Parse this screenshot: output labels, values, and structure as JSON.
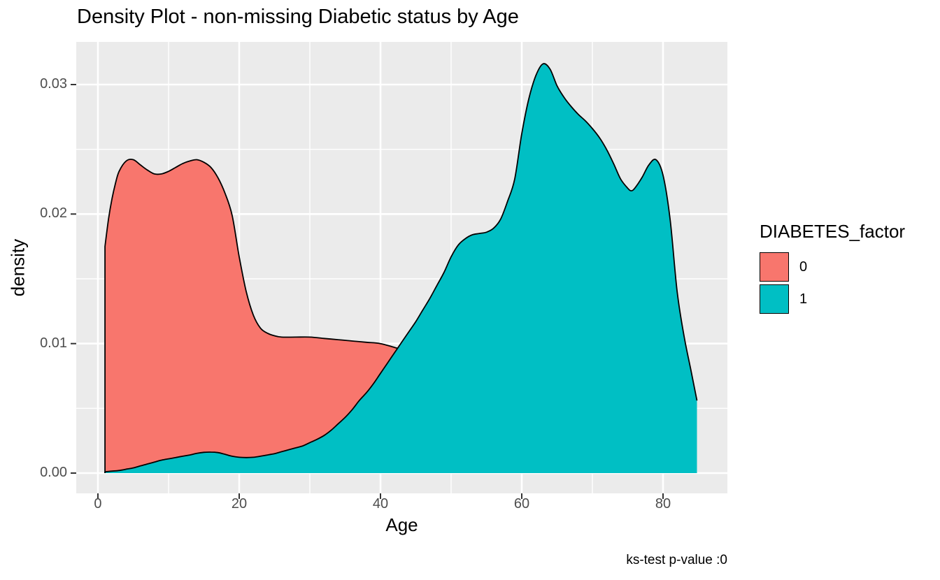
{
  "title": "Density Plot - non-missing Diabetic status by Age",
  "caption": "ks-test p-value :0",
  "axes": {
    "x": {
      "label": "Age",
      "tick_values": [
        0,
        20,
        40,
        60,
        80
      ],
      "tick_labels": [
        "0",
        "20",
        "40",
        "60",
        "80"
      ],
      "minor_ticks": [
        10,
        30,
        50,
        70
      ],
      "limits": [
        -3.069,
        89.109
      ]
    },
    "y": {
      "label": "density",
      "tick_values": [
        0,
        0.01,
        0.02,
        0.03
      ],
      "tick_labels": [
        "0.00",
        "0.01",
        "0.02",
        "0.03"
      ],
      "minor_ticks": [
        0.005,
        0.015,
        0.025
      ],
      "limits": [
        -0.001565,
        0.033292
      ]
    }
  },
  "legend": {
    "title": "DIABETES_factor",
    "position": "right",
    "items": [
      {
        "label": "0",
        "color": "#F8766D"
      },
      {
        "label": "1",
        "color": "#00BFC4"
      }
    ]
  },
  "colors": {
    "panel_background": "#EBEBEB",
    "gridline": "#FFFFFF",
    "curve_outline": "#000000",
    "tick_mark": "#333333",
    "tick_label": "#4d4d4d",
    "series_0": "#F8766D",
    "series_1": "#00BFC4"
  },
  "chart_data": {
    "type": "area",
    "title": "Density Plot - non-missing Diabetic status by Age",
    "xlabel": "Age",
    "ylabel": "density",
    "xlim": [
      -3.069,
      89.109
    ],
    "ylim": [
      -0.001565,
      0.033292
    ],
    "grid": true,
    "legend_position": "right",
    "series": [
      {
        "name": "0",
        "color": "#F8766D",
        "points": [
          [
            1,
            0.0175
          ],
          [
            1.5,
            0.0196
          ],
          [
            2,
            0.0212
          ],
          [
            2.5,
            0.0224
          ],
          [
            3,
            0.0233
          ],
          [
            4,
            0.0241
          ],
          [
            5,
            0.0242
          ],
          [
            6,
            0.0238
          ],
          [
            7,
            0.0234
          ],
          [
            8,
            0.0231
          ],
          [
            9,
            0.0231
          ],
          [
            10,
            0.0233
          ],
          [
            11,
            0.0236
          ],
          [
            12,
            0.0239
          ],
          [
            13,
            0.0241
          ],
          [
            14,
            0.0242
          ],
          [
            15,
            0.024
          ],
          [
            16,
            0.0236
          ],
          [
            17,
            0.0228
          ],
          [
            18,
            0.0216
          ],
          [
            19,
            0.0199
          ],
          [
            20,
            0.0167
          ],
          [
            21,
            0.014
          ],
          [
            22,
            0.0122
          ],
          [
            23,
            0.0112
          ],
          [
            24,
            0.0108
          ],
          [
            25,
            0.0106
          ],
          [
            26,
            0.0105
          ],
          [
            28,
            0.0105
          ],
          [
            30,
            0.0105
          ],
          [
            32,
            0.0104
          ],
          [
            34,
            0.0103
          ],
          [
            36,
            0.0102
          ],
          [
            38,
            0.0101
          ],
          [
            40,
            0.01
          ],
          [
            42,
            0.0097
          ],
          [
            44,
            0.0094
          ],
          [
            46,
            0.0091
          ],
          [
            47,
            0.0089
          ]
        ]
      },
      {
        "name": "1",
        "color": "#00BFC4",
        "points": [
          [
            1,
            0.0001
          ],
          [
            2,
            0.00015
          ],
          [
            3,
            0.0002
          ],
          [
            4,
            0.0003
          ],
          [
            5,
            0.0004
          ],
          [
            6,
            0.00055
          ],
          [
            7,
            0.0007
          ],
          [
            8,
            0.00085
          ],
          [
            9,
            0.001
          ],
          [
            10,
            0.0011
          ],
          [
            11,
            0.0012
          ],
          [
            12,
            0.0013
          ],
          [
            13,
            0.0014
          ],
          [
            14,
            0.00152
          ],
          [
            15,
            0.0016
          ],
          [
            16,
            0.00162
          ],
          [
            17,
            0.00158
          ],
          [
            18,
            0.00145
          ],
          [
            19,
            0.0013
          ],
          [
            20,
            0.00122
          ],
          [
            21,
            0.0012
          ],
          [
            22,
            0.00122
          ],
          [
            23,
            0.0013
          ],
          [
            24,
            0.0014
          ],
          [
            25,
            0.0015
          ],
          [
            26,
            0.00165
          ],
          [
            27,
            0.0018
          ],
          [
            28,
            0.00195
          ],
          [
            29,
            0.0021
          ],
          [
            30,
            0.00235
          ],
          [
            31,
            0.0026
          ],
          [
            32,
            0.0029
          ],
          [
            33,
            0.0033
          ],
          [
            34,
            0.0038
          ],
          [
            35,
            0.0043
          ],
          [
            36,
            0.0049
          ],
          [
            37,
            0.0056
          ],
          [
            38,
            0.0062
          ],
          [
            39,
            0.0069
          ],
          [
            40,
            0.0077
          ],
          [
            41,
            0.0085
          ],
          [
            42,
            0.0093
          ],
          [
            43,
            0.0101
          ],
          [
            44,
            0.0109
          ],
          [
            45,
            0.0117
          ],
          [
            46,
            0.0126
          ],
          [
            47,
            0.0135
          ],
          [
            48,
            0.0145
          ],
          [
            49,
            0.0155
          ],
          [
            50,
            0.0167
          ],
          [
            51,
            0.0176
          ],
          [
            52,
            0.0181
          ],
          [
            53,
            0.0184
          ],
          [
            54,
            0.0185
          ],
          [
            55,
            0.0186
          ],
          [
            56,
            0.0189
          ],
          [
            57,
            0.0196
          ],
          [
            58,
            0.021
          ],
          [
            59,
            0.0227
          ],
          [
            60,
            0.0262
          ],
          [
            61,
            0.0289
          ],
          [
            62,
            0.0307
          ],
          [
            63,
            0.0316
          ],
          [
            64,
            0.0312
          ],
          [
            65,
            0.0299
          ],
          [
            66,
            0.029
          ],
          [
            67,
            0.0283
          ],
          [
            68,
            0.0277
          ],
          [
            69,
            0.0272
          ],
          [
            70,
            0.0266
          ],
          [
            71,
            0.0259
          ],
          [
            72,
            0.025
          ],
          [
            73,
            0.0239
          ],
          [
            74,
            0.0227
          ],
          [
            75,
            0.022
          ],
          [
            75.5,
            0.0218
          ],
          [
            76,
            0.022
          ],
          [
            77,
            0.0228
          ],
          [
            78,
            0.0238
          ],
          [
            79,
            0.0242
          ],
          [
            80,
            0.023
          ],
          [
            81,
            0.0196
          ],
          [
            82,
            0.014
          ],
          [
            83,
            0.0105
          ],
          [
            84,
            0.0078
          ],
          [
            84.8,
            0.0056
          ]
        ]
      }
    ]
  }
}
